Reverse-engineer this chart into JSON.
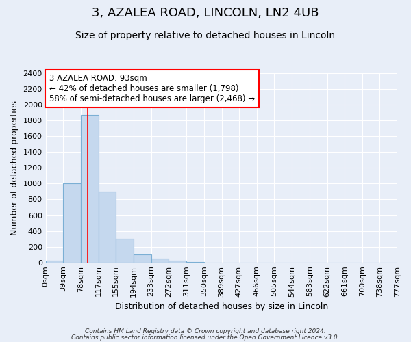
{
  "title1": "3, AZALEA ROAD, LINCOLN, LN2 4UB",
  "title2": "Size of property relative to detached houses in Lincoln",
  "xlabel": "Distribution of detached houses by size in Lincoln",
  "ylabel": "Number of detached properties",
  "bin_edges": [
    0,
    39,
    78,
    117,
    155,
    194,
    233,
    272,
    311,
    350,
    389,
    427,
    466,
    505,
    544,
    583,
    622,
    661,
    700,
    738,
    777
  ],
  "bar_heights": [
    20,
    1005,
    1870,
    900,
    300,
    100,
    45,
    20,
    2,
    0,
    0,
    0,
    0,
    0,
    0,
    0,
    0,
    0,
    0,
    0
  ],
  "bar_color": "#c5d8ee",
  "bar_edge_color": "#7bafd4",
  "bar_edge_width": 0.8,
  "red_line_x": 93,
  "ylim": [
    0,
    2400
  ],
  "yticks": [
    0,
    200,
    400,
    600,
    800,
    1000,
    1200,
    1400,
    1600,
    1800,
    2000,
    2200,
    2400
  ],
  "xtick_labels": [
    "0sqm",
    "39sqm",
    "78sqm",
    "117sqm",
    "155sqm",
    "194sqm",
    "233sqm",
    "272sqm",
    "311sqm",
    "350sqm",
    "389sqm",
    "427sqm",
    "466sqm",
    "505sqm",
    "544sqm",
    "583sqm",
    "622sqm",
    "661sqm",
    "700sqm",
    "738sqm",
    "777sqm"
  ],
  "annotation_text": "3 AZALEA ROAD: 93sqm\n← 42% of detached houses are smaller (1,798)\n58% of semi-detached houses are larger (2,468) →",
  "footer1": "Contains HM Land Registry data © Crown copyright and database right 2024.",
  "footer2": "Contains public sector information licensed under the Open Government Licence v3.0.",
  "bg_color": "#e8eef8",
  "plot_bg_color": "#e8eef8",
  "grid_color": "#ffffff",
  "title1_fontsize": 13,
  "title2_fontsize": 10,
  "tick_label_fontsize": 8,
  "axis_label_fontsize": 9,
  "footer_fontsize": 6.5
}
